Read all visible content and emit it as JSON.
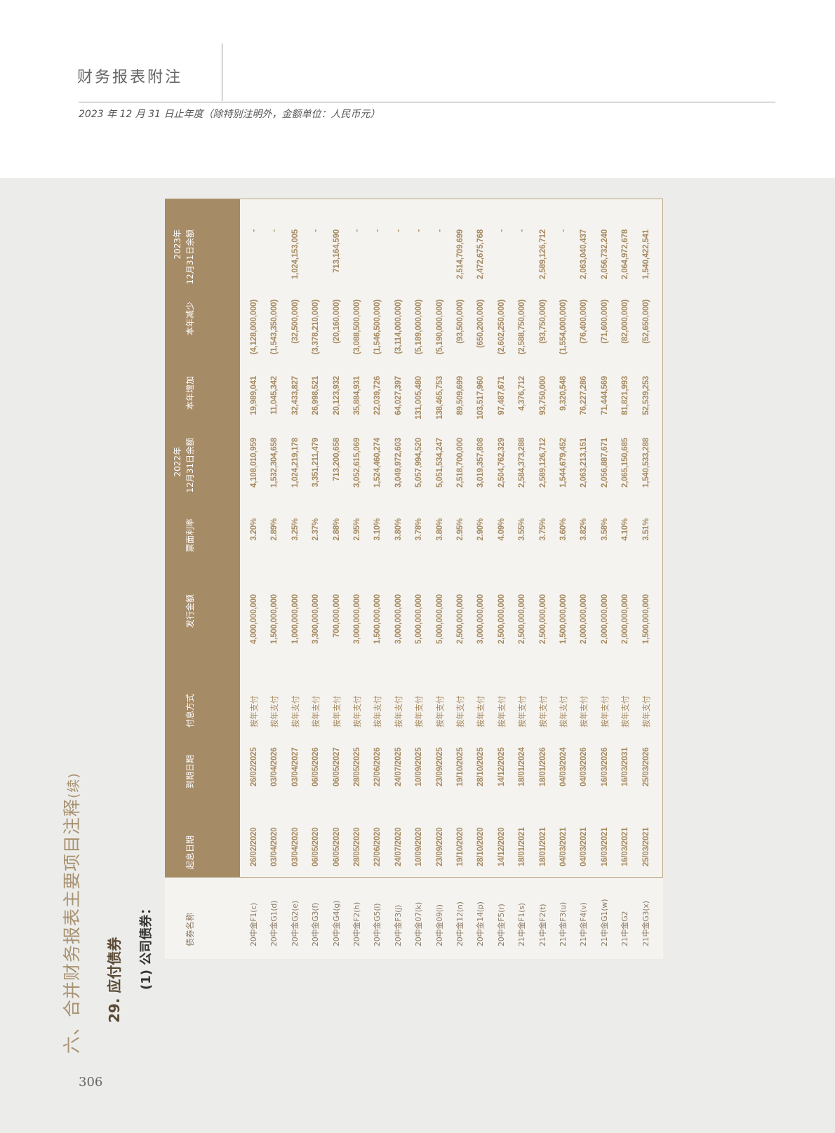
{
  "header": {
    "title": "财务报表附注",
    "subtitle": "2023 年 12 月 31 日止年度（除特别注明外，金额单位：人民币元）"
  },
  "section": {
    "title": "六、合并财务报表主要项目注释",
    "continued": "(续)",
    "subsection": "29. 应付债券",
    "item": "(1)  公司债券："
  },
  "page_number": "306",
  "colors": {
    "header_band": "#a68b67",
    "data_text": "#a58a62",
    "accent_title": "#a89271"
  },
  "table": {
    "columns": {
      "name": "债券名称",
      "start": "起息日期",
      "maturity": "到期日期",
      "payment": "付息方式",
      "issue": "发行金额",
      "rate": "票面利率",
      "open_year": "2022年",
      "open": "12月31日余额",
      "increase": "本年增加",
      "decrease": "本年减少",
      "close_year": "2023年",
      "close": "12月31日余额"
    },
    "rows": [
      [
        "20中金F1(c)",
        "26/02/2020",
        "26/02/2025",
        "按年支付",
        "4,000,000,000",
        "3.20%",
        "4,108,010,959",
        "19,989,041",
        "(4,128,000,000)",
        "-"
      ],
      [
        "20中金G1(d)",
        "03/04/2020",
        "03/04/2026",
        "按年支付",
        "1,500,000,000",
        "2.89%",
        "1,532,304,658",
        "11,045,342",
        "(1,543,350,000)",
        "-"
      ],
      [
        "20中金G2(e)",
        "03/04/2020",
        "03/04/2027",
        "按年支付",
        "1,000,000,000",
        "3.25%",
        "1,024,219,178",
        "32,433,827",
        "(32,500,000)",
        "1,024,153,005"
      ],
      [
        "20中金G3(f)",
        "06/05/2020",
        "06/05/2026",
        "按年支付",
        "3,300,000,000",
        "2.37%",
        "3,351,211,479",
        "26,998,521",
        "(3,378,210,000)",
        "-"
      ],
      [
        "20中金G4(g)",
        "06/05/2020",
        "06/05/2027",
        "按年支付",
        "700,000,000",
        "2.88%",
        "713,200,658",
        "20,123,932",
        "(20,160,000)",
        "713,164,590"
      ],
      [
        "20中金F2(h)",
        "28/05/2020",
        "28/05/2025",
        "按年支付",
        "3,000,000,000",
        "2.95%",
        "3,052,615,069",
        "35,884,931",
        "(3,088,500,000)",
        "-"
      ],
      [
        "20中金G5(i)",
        "22/06/2020",
        "22/06/2026",
        "按年支付",
        "1,500,000,000",
        "3.10%",
        "1,524,460,274",
        "22,039,726",
        "(1,546,500,000)",
        "-"
      ],
      [
        "20中金F3(j)",
        "24/07/2020",
        "24/07/2025",
        "按年支付",
        "3,000,000,000",
        "3.80%",
        "3,049,972,603",
        "64,027,397",
        "(3,114,000,000)",
        "-"
      ],
      [
        "20中金07(k)",
        "10/09/2020",
        "10/09/2025",
        "按年支付",
        "5,000,000,000",
        "3.78%",
        "5,057,994,520",
        "131,005,480",
        "(5,189,000,000)",
        "-"
      ],
      [
        "20中金09(l)",
        "23/09/2020",
        "23/09/2025",
        "按年支付",
        "5,000,000,000",
        "3.80%",
        "5,051,534,247",
        "138,465,753",
        "(5,190,000,000)",
        "-"
      ],
      [
        "20中金12(n)",
        "19/10/2020",
        "19/10/2025",
        "按年支付",
        "2,500,000,000",
        "2.95%",
        "2,518,700,000",
        "89,509,699",
        "(93,500,000)",
        "2,514,709,699"
      ],
      [
        "20中金14(p)",
        "28/10/2020",
        "28/10/2025",
        "按年支付",
        "3,000,000,000",
        "2.90%",
        "3,019,357,808",
        "103,517,960",
        "(650,200,000)",
        "2,472,675,768"
      ],
      [
        "20中金F5(r)",
        "14/12/2020",
        "14/12/2025",
        "按年支付",
        "2,500,000,000",
        "4.09%",
        "2,504,762,329",
        "97,487,671",
        "(2,602,250,000)",
        "-"
      ],
      [
        "21中金F1(s)",
        "18/01/2021",
        "18/01/2024",
        "按年支付",
        "2,500,000,000",
        "3.55%",
        "2,584,373,288",
        "4,376,712",
        "(2,588,750,000)",
        "-"
      ],
      [
        "21中金F2(t)",
        "18/01/2021",
        "18/01/2026",
        "按年支付",
        "2,500,000,000",
        "3.75%",
        "2,589,126,712",
        "93,750,000",
        "(93,750,000)",
        "2,589,126,712"
      ],
      [
        "21中金F3(u)",
        "04/03/2021",
        "04/03/2024",
        "按年支付",
        "1,500,000,000",
        "3.60%",
        "1,544,679,452",
        "9,320,548",
        "(1,554,000,000)",
        "-"
      ],
      [
        "21中金F4(v)",
        "04/03/2021",
        "04/03/2026",
        "按年支付",
        "2,000,000,000",
        "3.82%",
        "2,063,213,151",
        "76,227,286",
        "(76,400,000)",
        "2,063,040,437"
      ],
      [
        "21中金G1(w)",
        "16/03/2021",
        "16/03/2026",
        "按年支付",
        "2,000,000,000",
        "3.58%",
        "2,056,887,671",
        "71,444,569",
        "(71,600,000)",
        "2,056,732,240"
      ],
      [
        "21中金G2",
        "16/03/2021",
        "16/03/2031",
        "按年支付",
        "2,000,000,000",
        "4.10%",
        "2,065,150,685",
        "81,821,993",
        "(82,000,000)",
        "2,064,972,678"
      ],
      [
        "21中金G3(x)",
        "25/03/2021",
        "25/03/2026",
        "按年支付",
        "1,500,000,000",
        "3.51%",
        "1,540,533,288",
        "52,539,253",
        "(52,650,000)",
        "1,540,422,541"
      ]
    ]
  }
}
